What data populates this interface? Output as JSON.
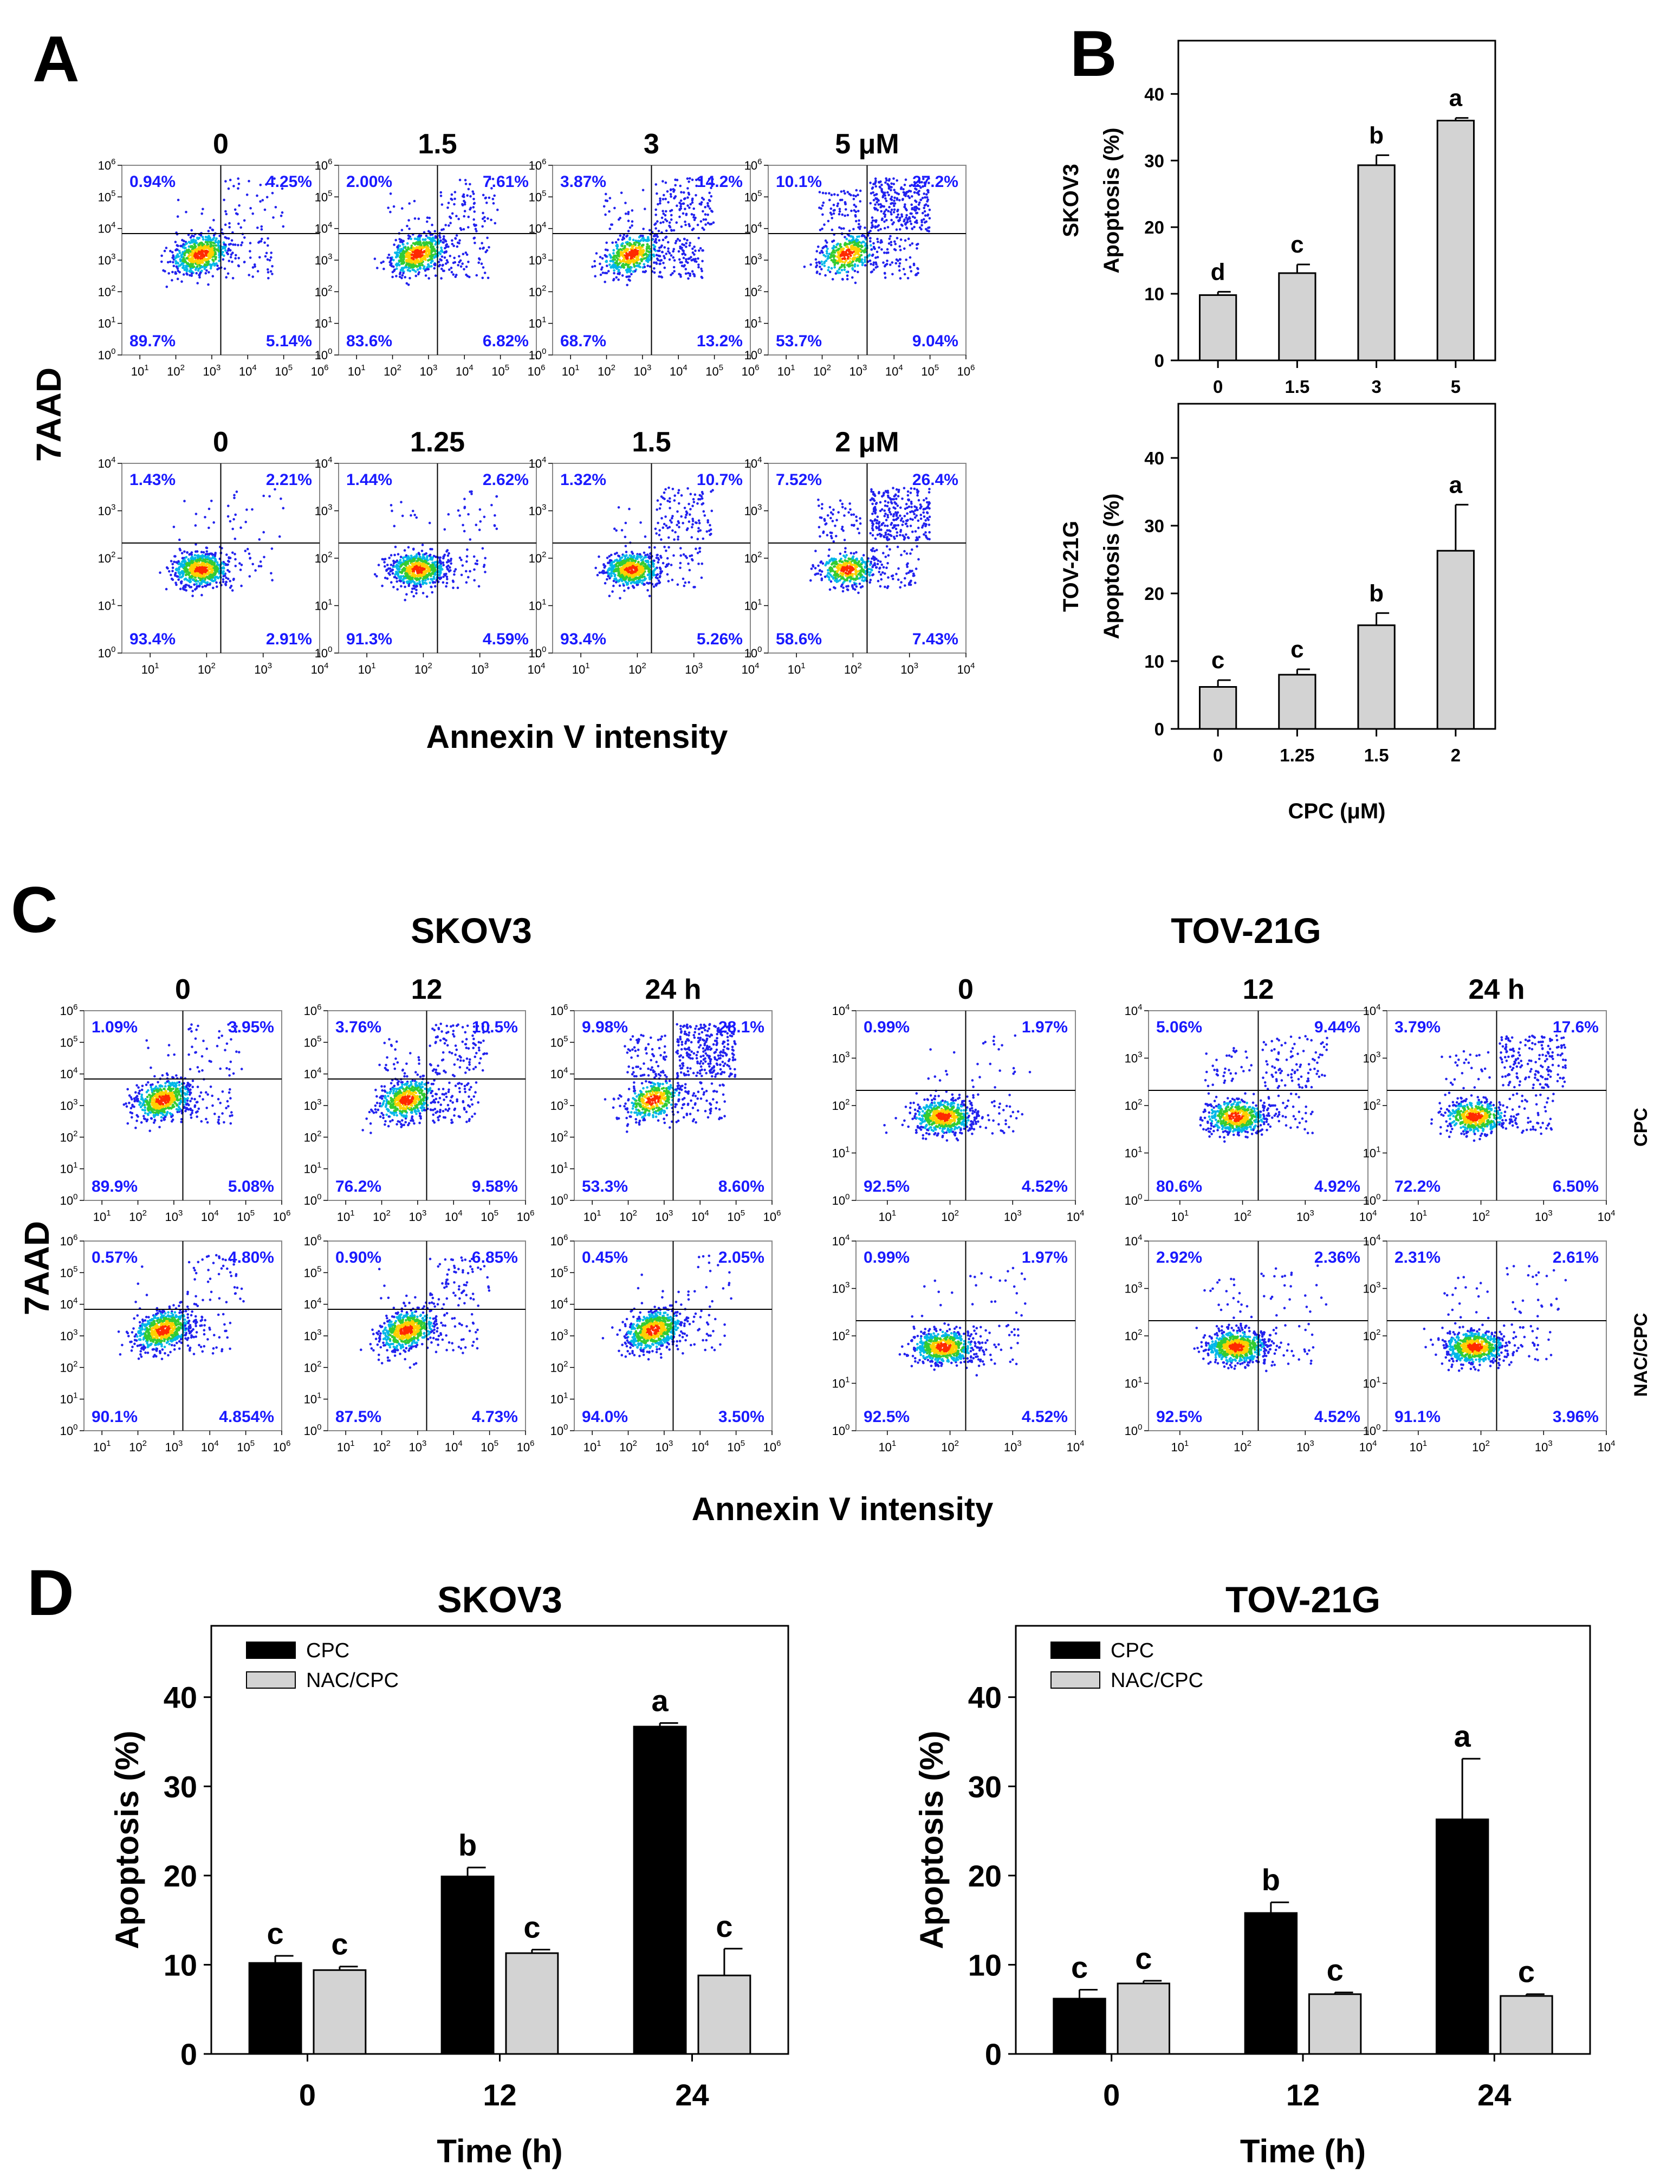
{
  "panel_letters": {
    "A": "A",
    "B": "B",
    "C": "C",
    "D": "D"
  },
  "common": {
    "y_label_7aad": "7AAD",
    "x_label_annexin": "Annexin V intensity"
  },
  "colors": {
    "quadrant_text": "#1a1aff",
    "bar_cpc": "#000000",
    "bar_nac": "#d3d3d3",
    "bar_single": "#d3d3d3"
  },
  "panel_A": {
    "rows": [
      {
        "cell_line": "SKOV3",
        "decades": 6,
        "conditions": [
          {
            "label": "0",
            "q": [
              "0.94%",
              "4.25%",
              "89.7%",
              "5.14%"
            ]
          },
          {
            "label": "1.5",
            "q": [
              "2.00%",
              "7.61%",
              "83.6%",
              "6.82%"
            ]
          },
          {
            "label": "3",
            "q": [
              "3.87%",
              "14.2%",
              "68.7%",
              "13.2%"
            ]
          },
          {
            "label": "5 μM",
            "q": [
              "10.1%",
              "27.2%",
              "53.7%",
              "9.04%"
            ]
          }
        ]
      },
      {
        "cell_line": "TOV-21G",
        "decades": 4,
        "conditions": [
          {
            "label": "0",
            "q": [
              "1.43%",
              "2.21%",
              "93.4%",
              "2.91%"
            ]
          },
          {
            "label": "1.25",
            "q": [
              "1.44%",
              "2.62%",
              "91.3%",
              "4.59%"
            ]
          },
          {
            "label": "1.5",
            "q": [
              "1.32%",
              "10.7%",
              "93.4%",
              "5.26%"
            ]
          },
          {
            "label": "2 μM",
            "q": [
              "7.52%",
              "26.4%",
              "58.6%",
              "7.43%"
            ]
          }
        ]
      }
    ]
  },
  "panel_C": {
    "groups": [
      {
        "title": "SKOV3",
        "decades": 6,
        "time_labels": [
          "0",
          "12",
          "24 h"
        ],
        "rows": [
          {
            "treatment": "CPC",
            "plots": [
              [
                "1.09%",
                "3.95%",
                "89.9%",
                "5.08%"
              ],
              [
                "3.76%",
                "10.5%",
                "76.2%",
                "9.58%"
              ],
              [
                "9.98%",
                "28.1%",
                "53.3%",
                "8.60%"
              ]
            ]
          },
          {
            "treatment": "NAC/CPC",
            "plots": [
              [
                "0.57%",
                "4.80%",
                "90.1%",
                "4.854%"
              ],
              [
                "0.90%",
                "6.85%",
                "87.5%",
                "4.73%"
              ],
              [
                "0.45%",
                "2.05%",
                "94.0%",
                "3.50%"
              ]
            ]
          }
        ]
      },
      {
        "title": "TOV-21G",
        "decades": 4,
        "time_labels": [
          "0",
          "12",
          "24 h"
        ],
        "rows": [
          {
            "treatment": "CPC",
            "plots": [
              [
                "0.99%",
                "1.97%",
                "92.5%",
                "4.52%"
              ],
              [
                "5.06%",
                "9.44%",
                "80.6%",
                "4.92%"
              ],
              [
                "3.79%",
                "17.6%",
                "72.2%",
                "6.50%"
              ]
            ]
          },
          {
            "treatment": "NAC/CPC",
            "plots": [
              [
                "0.99%",
                "1.97%",
                "92.5%",
                "4.52%"
              ],
              [
                "2.92%",
                "2.36%",
                "92.5%",
                "4.52%"
              ],
              [
                "2.31%",
                "2.61%",
                "91.1%",
                "3.96%"
              ]
            ]
          }
        ]
      }
    ],
    "side_labels": [
      "CPC",
      "NAC/CPC"
    ]
  },
  "chart_data": [
    {
      "id": "B-SKOV3",
      "type": "bar",
      "cell_line": "SKOV3",
      "categories": [
        "0",
        "1.5",
        "3",
        "5"
      ],
      "values": [
        9.8,
        13.1,
        29.3,
        36.0
      ],
      "errors": [
        0.5,
        1.3,
        1.5,
        0.4
      ],
      "letters": [
        "d",
        "c",
        "b",
        "a"
      ],
      "ylabel": "Apoptosis (%)",
      "xlabel": "",
      "ylim": [
        0,
        48
      ],
      "yticks": [
        0,
        10,
        20,
        30,
        40
      ]
    },
    {
      "id": "B-TOV21G",
      "type": "bar",
      "cell_line": "TOV-21G",
      "categories": [
        "0",
        "1.25",
        "1.5",
        "2"
      ],
      "values": [
        6.2,
        8.0,
        15.3,
        26.3
      ],
      "errors": [
        1.0,
        0.8,
        1.8,
        6.8
      ],
      "letters": [
        "c",
        "c",
        "b",
        "a"
      ],
      "ylabel": "Apoptosis (%)",
      "xlabel": "CPC (μM)",
      "ylim": [
        0,
        48
      ],
      "yticks": [
        0,
        10,
        20,
        30,
        40
      ]
    },
    {
      "id": "D-SKOV3",
      "type": "bar",
      "title": "SKOV3",
      "categories": [
        "0",
        "12",
        "24"
      ],
      "xlabel": "Time (h)",
      "ylabel": "Apoptosis (%)",
      "ylim": [
        0,
        48
      ],
      "yticks": [
        0,
        10,
        20,
        30,
        40
      ],
      "legend": "top-left",
      "series": [
        {
          "name": "CPC",
          "values": [
            10.2,
            19.9,
            36.7
          ],
          "errors": [
            0.8,
            1.0,
            0.4
          ],
          "letters": [
            "c",
            "b",
            "a"
          ]
        },
        {
          "name": "NAC/CPC",
          "values": [
            9.4,
            11.3,
            8.8
          ],
          "errors": [
            0.4,
            0.4,
            3.0
          ],
          "letters": [
            "c",
            "c",
            "c"
          ]
        }
      ]
    },
    {
      "id": "D-TOV21G",
      "type": "bar",
      "title": "TOV-21G",
      "categories": [
        "0",
        "12",
        "24"
      ],
      "xlabel": "Time (h)",
      "ylabel": "Apoptosis (%)",
      "ylim": [
        0,
        48
      ],
      "yticks": [
        0,
        10,
        20,
        30,
        40
      ],
      "legend": "top-left",
      "series": [
        {
          "name": "CPC",
          "values": [
            6.2,
            15.8,
            26.3
          ],
          "errors": [
            1.0,
            1.2,
            6.8
          ],
          "letters": [
            "c",
            "b",
            "a"
          ]
        },
        {
          "name": "NAC/CPC",
          "values": [
            7.9,
            6.7,
            6.5
          ],
          "errors": [
            0.3,
            0.2,
            0.2
          ],
          "letters": [
            "c",
            "c",
            "c"
          ]
        }
      ]
    }
  ]
}
